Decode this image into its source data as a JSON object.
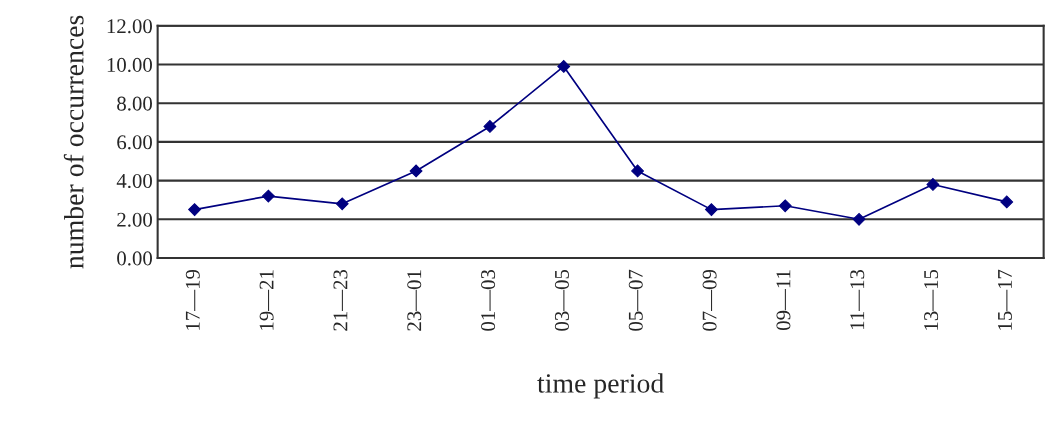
{
  "chart_data": {
    "type": "line",
    "xlabel": "time period",
    "ylabel": "number of occurrences",
    "categories": [
      "17—19",
      "19—21",
      "21—23",
      "23—01",
      "01—03",
      "03—05",
      "05—07",
      "07—09",
      "09—11",
      "11—13",
      "13—15",
      "15—17"
    ],
    "series": [
      {
        "color": "#000080",
        "values": [
          2.5,
          3.2,
          2.8,
          4.5,
          6.8,
          9.9,
          4.5,
          2.5,
          2.7,
          2.0,
          3.8,
          2.9
        ]
      }
    ],
    "ylim": [
      0,
      12
    ],
    "yticks": [
      {
        "value": 0,
        "label": "0.00"
      },
      {
        "value": 2,
        "label": "2.00"
      },
      {
        "value": 4,
        "label": "4.00"
      },
      {
        "value": 6,
        "label": "6.00"
      },
      {
        "value": 8,
        "label": "8.00"
      },
      {
        "value": 10,
        "label": "10.00"
      },
      {
        "value": 12,
        "label": "12.00"
      }
    ],
    "grid": "y",
    "marker": "diamond",
    "line_style": "solid"
  }
}
